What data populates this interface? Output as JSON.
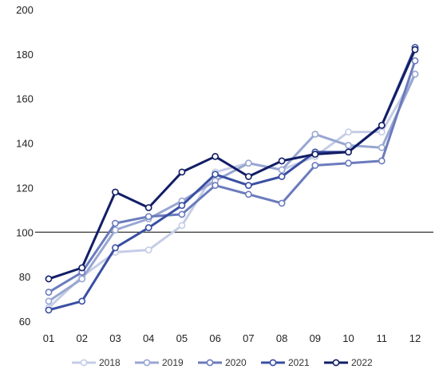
{
  "chart_data": {
    "type": "line",
    "title": "",
    "xlabel": "",
    "ylabel": "",
    "ylim": [
      60,
      200
    ],
    "y_ticks": [
      60,
      80,
      100,
      120,
      140,
      160,
      180,
      200
    ],
    "reference_line": 100,
    "grid": false,
    "legend_position": "bottom",
    "categories": [
      "01",
      "02",
      "03",
      "04",
      "05",
      "06",
      "07",
      "08",
      "09",
      "10",
      "11",
      "12"
    ],
    "series": [
      {
        "name": "2018",
        "color": "#c5cde6",
        "values": [
          66,
          80,
          91,
          92,
          103,
          127,
          131,
          128,
          134,
          145,
          145,
          171
        ]
      },
      {
        "name": "2019",
        "color": "#98a6d2",
        "values": [
          69,
          79,
          101,
          106,
          114,
          123,
          131,
          128,
          144,
          139,
          138,
          171
        ]
      },
      {
        "name": "2020",
        "color": "#6b7bbd",
        "values": [
          73,
          82,
          104,
          107,
          108,
          121,
          117,
          113,
          130,
          131,
          132,
          177
        ]
      },
      {
        "name": "2021",
        "color": "#3a4fa3",
        "values": [
          65,
          69,
          93,
          102,
          112,
          126,
          121,
          125,
          136,
          136,
          148,
          183
        ]
      },
      {
        "name": "2022",
        "color": "#121e66",
        "values": [
          79,
          84,
          118,
          111,
          127,
          134,
          125,
          132,
          135,
          136,
          148,
          182
        ]
      }
    ]
  }
}
